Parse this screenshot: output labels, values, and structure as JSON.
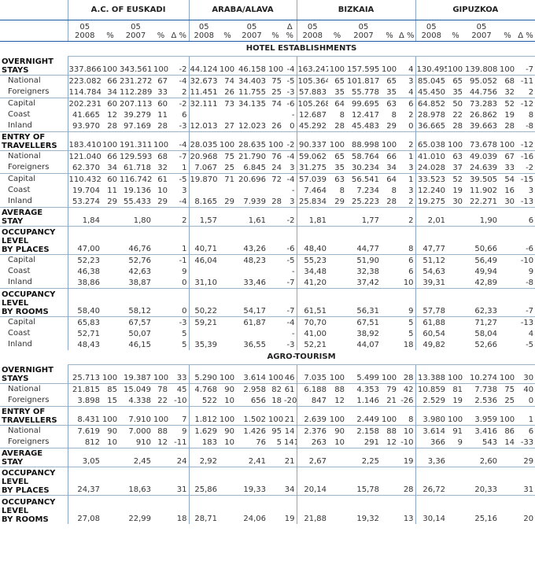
{
  "regions": [
    "A.C. OF EUSKADI",
    "ARABA/ALAVA",
    "BIZKAIA",
    "GIPUZKOA"
  ],
  "subheaders": {
    "y2008": "05\n2008",
    "pct": "%",
    "y2007": "05\n2007",
    "pct2": "%",
    "delta": "Δ %"
  },
  "sections": [
    {
      "title": "HOTEL ESTABLISHMENTS",
      "rows": [
        {
          "label": "OVERNIGHT\nSTAYS",
          "bold": true,
          "sep": false,
          "values": [
            "337.866",
            "100",
            "343.561",
            "100",
            "-2",
            "44.124",
            "100",
            "46.158",
            "100",
            "-4",
            "163.247",
            "100",
            "157.595",
            "100",
            "4",
            "130.495",
            "100",
            "139.808",
            "100",
            "-7"
          ]
        },
        {
          "label": "National",
          "bold": false,
          "sep": true,
          "values": [
            "223.082",
            "66",
            "231.272",
            "67",
            "-4",
            "32.673",
            "74",
            "34.403",
            "75",
            "-5",
            "105.364",
            "65",
            "101.817",
            "65",
            "3",
            "85.045",
            "65",
            "95.052",
            "68",
            "-11"
          ]
        },
        {
          "label": "Foreigners",
          "bold": false,
          "sep": false,
          "values": [
            "114.784",
            "34",
            "112.289",
            "33",
            "2",
            "11.451",
            "26",
            "11.755",
            "25",
            "-3",
            "57.883",
            "35",
            "55.778",
            "35",
            "4",
            "45.450",
            "35",
            "44.756",
            "32",
            "2"
          ]
        },
        {
          "label": "Capital",
          "bold": false,
          "sep": true,
          "values": [
            "202.231",
            "60",
            "207.113",
            "60",
            "-2",
            "32.111",
            "73",
            "34.135",
            "74",
            "-6",
            "105.268",
            "64",
            "99.695",
            "63",
            "6",
            "64.852",
            "50",
            "73.283",
            "52",
            "-12"
          ]
        },
        {
          "label": "Coast",
          "bold": false,
          "sep": false,
          "values": [
            "41.665",
            "12",
            "39.279",
            "11",
            "6",
            "",
            "",
            "",
            "",
            "-",
            "12.687",
            "8",
            "12.417",
            "8",
            "2",
            "28.978",
            "22",
            "26.862",
            "19",
            "8"
          ]
        },
        {
          "label": "Inland",
          "bold": false,
          "sep": false,
          "values": [
            "93.970",
            "28",
            "97.169",
            "28",
            "-3",
            "12.013",
            "27",
            "12.023",
            "26",
            "0",
            "45.292",
            "28",
            "45.483",
            "29",
            "0",
            "36.665",
            "28",
            "39.663",
            "28",
            "-8"
          ]
        },
        {
          "label": "ENTRY OF\nTRAVELLERS",
          "bold": true,
          "sep": true,
          "values": [
            "183.410",
            "100",
            "191.311",
            "100",
            "-4",
            "28.035",
            "100",
            "28.635",
            "100",
            "-2",
            "90.337",
            "100",
            "88.998",
            "100",
            "2",
            "65.038",
            "100",
            "73.678",
            "100",
            "-12"
          ]
        },
        {
          "label": "National",
          "bold": false,
          "sep": true,
          "values": [
            "121.040",
            "66",
            "129.593",
            "68",
            "-7",
            "20.968",
            "75",
            "21.790",
            "76",
            "-4",
            "59.062",
            "65",
            "58.764",
            "66",
            "1",
            "41.010",
            "63",
            "49.039",
            "67",
            "-16"
          ]
        },
        {
          "label": "Foreigners",
          "bold": false,
          "sep": false,
          "values": [
            "62.370",
            "34",
            "61.718",
            "32",
            "1",
            "7.067",
            "25",
            "6.845",
            "24",
            "3",
            "31.275",
            "35",
            "30.234",
            "34",
            "3",
            "24.028",
            "37",
            "24.639",
            "33",
            "-2"
          ]
        },
        {
          "label": "Capital",
          "bold": false,
          "sep": true,
          "values": [
            "110.432",
            "60",
            "116.742",
            "61",
            "-5",
            "19.870",
            "71",
            "20.696",
            "72",
            "-4",
            "57.039",
            "63",
            "56.541",
            "64",
            "1",
            "33.523",
            "52",
            "39.505",
            "54",
            "-15"
          ]
        },
        {
          "label": "Coast",
          "bold": false,
          "sep": false,
          "values": [
            "19.704",
            "11",
            "19.136",
            "10",
            "3",
            "",
            "",
            "",
            "",
            "-",
            "7.464",
            "8",
            "7.234",
            "8",
            "3",
            "12.240",
            "19",
            "11.902",
            "16",
            "3"
          ]
        },
        {
          "label": "Inland",
          "bold": false,
          "sep": false,
          "values": [
            "53.274",
            "29",
            "55.433",
            "29",
            "-4",
            "8.165",
            "29",
            "7.939",
            "28",
            "3",
            "25.834",
            "29",
            "25.223",
            "28",
            "2",
            "19.275",
            "30",
            "22.271",
            "30",
            "-13"
          ]
        },
        {
          "label": "AVERAGE\nSTAY",
          "bold": true,
          "sep": true,
          "values": [
            "1,84",
            "",
            "1,80",
            "",
            "2",
            "1,57",
            "",
            "1,61",
            "",
            "-2",
            "1,81",
            "",
            "1,77",
            "",
            "2",
            "2,01",
            "",
            "1,90",
            "",
            "6"
          ]
        },
        {
          "label": "OCCUPANCY\nLEVEL\nBY PLACES",
          "bold": true,
          "sep": true,
          "values": [
            "47,00",
            "",
            "46,76",
            "",
            "1",
            "40,71",
            "",
            "43,26",
            "",
            "-6",
            "48,40",
            "",
            "44,77",
            "",
            "8",
            "47,77",
            "",
            "50,66",
            "",
            "-6"
          ]
        },
        {
          "label": "Capital",
          "bold": false,
          "sep": true,
          "values": [
            "52,23",
            "",
            "52,76",
            "",
            "-1",
            "46,04",
            "",
            "48,23",
            "",
            "-5",
            "55,23",
            "",
            "51,90",
            "",
            "6",
            "51,12",
            "",
            "56,49",
            "",
            "-10"
          ]
        },
        {
          "label": "Coast",
          "bold": false,
          "sep": false,
          "values": [
            "46,38",
            "",
            "42,63",
            "",
            "9",
            "",
            "",
            "",
            "",
            "-",
            "34,48",
            "",
            "32,38",
            "",
            "6",
            "54,63",
            "",
            "49,94",
            "",
            "9"
          ]
        },
        {
          "label": "Inland",
          "bold": false,
          "sep": false,
          "values": [
            "38,86",
            "",
            "38,87",
            "",
            "0",
            "31,10",
            "",
            "33,46",
            "",
            "-7",
            "41,20",
            "",
            "37,42",
            "",
            "10",
            "39,31",
            "",
            "42,89",
            "",
            "-8"
          ]
        },
        {
          "label": "OCCUPANCY\nLEVEL\nBY ROOMS",
          "bold": true,
          "sep": true,
          "values": [
            "58,40",
            "",
            "58,12",
            "",
            "0",
            "50,22",
            "",
            "54,17",
            "",
            "-7",
            "61,51",
            "",
            "56,31",
            "",
            "9",
            "57,78",
            "",
            "62,33",
            "",
            "-7"
          ]
        },
        {
          "label": "Capital",
          "bold": false,
          "sep": true,
          "values": [
            "65,83",
            "",
            "67,57",
            "",
            "-3",
            "59,21",
            "",
            "61,87",
            "",
            "-4",
            "70,70",
            "",
            "67,51",
            "",
            "5",
            "61,88",
            "",
            "71,27",
            "",
            "-13"
          ]
        },
        {
          "label": "Coast",
          "bold": false,
          "sep": false,
          "values": [
            "52,71",
            "",
            "50,07",
            "",
            "5",
            "",
            "",
            "",
            "",
            "-",
            "41,00",
            "",
            "38,92",
            "",
            "5",
            "60,54",
            "",
            "58,04",
            "",
            "4"
          ]
        },
        {
          "label": "Inland",
          "bold": false,
          "sep": false,
          "values": [
            "48,43",
            "",
            "46,15",
            "",
            "5",
            "35,39",
            "",
            "36,55",
            "",
            "-3",
            "52,21",
            "",
            "44,07",
            "",
            "18",
            "49,82",
            "",
            "52,66",
            "",
            "-5"
          ]
        }
      ]
    },
    {
      "title": "AGRO-TOURISM",
      "rows": [
        {
          "label": "OVERNIGHT\nSTAYS",
          "bold": true,
          "sep": false,
          "values": [
            "25.713",
            "100",
            "19.387",
            "100",
            "33",
            "5.290",
            "100",
            "3.614",
            "100",
            "46",
            "7.035",
            "100",
            "5.499",
            "100",
            "28",
            "13.388",
            "100",
            "10.274",
            "100",
            "30"
          ]
        },
        {
          "label": "National",
          "bold": false,
          "sep": true,
          "values": [
            "21.815",
            "85",
            "15.049",
            "78",
            "45",
            "4.768",
            "90",
            "2.958",
            "82",
            "61",
            "6.188",
            "88",
            "4.353",
            "79",
            "42",
            "10.859",
            "81",
            "7.738",
            "75",
            "40"
          ]
        },
        {
          "label": "Foreigners",
          "bold": false,
          "sep": false,
          "values": [
            "3.898",
            "15",
            "4.338",
            "22",
            "-10",
            "522",
            "10",
            "656",
            "18",
            "-20",
            "847",
            "12",
            "1.146",
            "21",
            "-26",
            "2.529",
            "19",
            "2.536",
            "25",
            "0"
          ]
        },
        {
          "label": "ENTRY OF\nTRAVELLERS",
          "bold": true,
          "sep": true,
          "values": [
            "8.431",
            "100",
            "7.910",
            "100",
            "7",
            "1.812",
            "100",
            "1.502",
            "100",
            "21",
            "2.639",
            "100",
            "2.449",
            "100",
            "8",
            "3.980",
            "100",
            "3.959",
            "100",
            "1"
          ]
        },
        {
          "label": "National",
          "bold": false,
          "sep": true,
          "values": [
            "7.619",
            "90",
            "7.000",
            "88",
            "9",
            "1.629",
            "90",
            "1.426",
            "95",
            "14",
            "2.376",
            "90",
            "2.158",
            "88",
            "10",
            "3.614",
            "91",
            "3.416",
            "86",
            "6"
          ]
        },
        {
          "label": "Foreigners",
          "bold": false,
          "sep": false,
          "values": [
            "812",
            "10",
            "910",
            "12",
            "-11",
            "183",
            "10",
            "76",
            "5",
            "141",
            "263",
            "10",
            "291",
            "12",
            "-10",
            "366",
            "9",
            "543",
            "14",
            "-33"
          ]
        },
        {
          "label": "AVERAGE\nSTAY",
          "bold": true,
          "sep": true,
          "values": [
            "3,05",
            "",
            "2,45",
            "",
            "24",
            "2,92",
            "",
            "2,41",
            "",
            "21",
            "2,67",
            "",
            "2,25",
            "",
            "19",
            "3,36",
            "",
            "2,60",
            "",
            "29"
          ]
        },
        {
          "label": "OCCUPANCY\nLEVEL\nBY PLACES",
          "bold": true,
          "sep": true,
          "values": [
            "24,37",
            "",
            "18,63",
            "",
            "31",
            "25,86",
            "",
            "19,33",
            "",
            "34",
            "20,14",
            "",
            "15,78",
            "",
            "28",
            "26,72",
            "",
            "20,33",
            "",
            "31"
          ]
        },
        {
          "label": "OCCUPANCY\nLEVEL\nBY ROOMS",
          "bold": true,
          "sep": true,
          "values": [
            "27,08",
            "",
            "22,99",
            "",
            "18",
            "28,71",
            "",
            "24,06",
            "",
            "19",
            "21,88",
            "",
            "19,32",
            "",
            "13",
            "30,14",
            "",
            "25,16",
            "",
            "20"
          ]
        }
      ]
    }
  ]
}
